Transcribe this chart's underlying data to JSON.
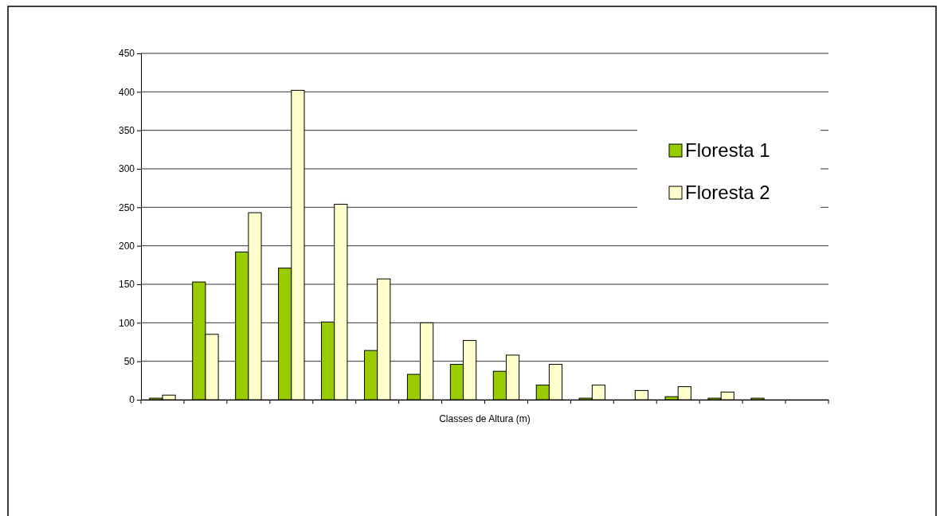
{
  "chart_data": {
    "type": "bar",
    "xlabel": "Classes de Altura (m)",
    "categories": [
      null,
      null,
      null,
      null,
      null,
      null,
      null,
      null,
      null,
      null,
      null,
      null,
      null,
      null,
      null,
      null
    ],
    "series": [
      {
        "name": "Floresta 1",
        "color": "#99cc00",
        "values": [
          2,
          153,
          192,
          171,
          101,
          64,
          33,
          46,
          37,
          19,
          2,
          0,
          4,
          2,
          2,
          0
        ]
      },
      {
        "name": "Floresta 2",
        "color": "#ffffcc",
        "values": [
          6,
          85,
          243,
          402,
          254,
          157,
          100,
          77,
          58,
          46,
          19,
          12,
          17,
          10,
          0,
          0
        ]
      }
    ],
    "ylim": [
      0,
      450
    ],
    "yticks": [
      0,
      50,
      100,
      150,
      200,
      250,
      300,
      350,
      400,
      450
    ],
    "grid": "y",
    "legend": "top right"
  }
}
